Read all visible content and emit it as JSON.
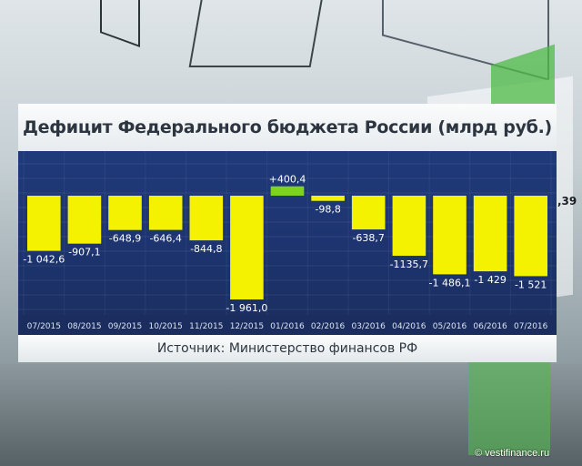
{
  "title": "Дефицит Федерального бюджета России (млрд руб.)",
  "source": "Источник: Министерство финансов РФ",
  "watermark": "© vestifinance.ru",
  "side_fragment": ",39",
  "colors": {
    "positive": "#7ed321",
    "negative": "#f5f200",
    "chart_bg": "#1e3777"
  },
  "chart_data": {
    "type": "bar",
    "title": "Дефицит Федерального бюджета России (млрд руб.)",
    "categories": [
      "07/2015",
      "08/2015",
      "09/2015",
      "10/2015",
      "11/2015",
      "12/2015",
      "01/2016",
      "02/2016",
      "03/2016",
      "04/2016",
      "05/2016",
      "06/2016",
      "07/2016"
    ],
    "values": [
      -1042.6,
      -907.1,
      -648.9,
      -646.4,
      -844.8,
      -1961.0,
      400.4,
      -98.8,
      -638.7,
      -1135.7,
      -1486.1,
      -1429,
      -1521
    ],
    "labels": [
      "-1 042,6",
      "-907,1",
      "-648,9",
      "-646,4",
      "-844,8",
      "-1 961,0",
      "+400,4",
      "-98,8",
      "-638,7",
      "-1135,7",
      "-1 486,1",
      "-1 429",
      "-1 521"
    ],
    "ylim": [
      -2000,
      450
    ],
    "grid": true,
    "xlabel": "",
    "ylabel": ""
  }
}
